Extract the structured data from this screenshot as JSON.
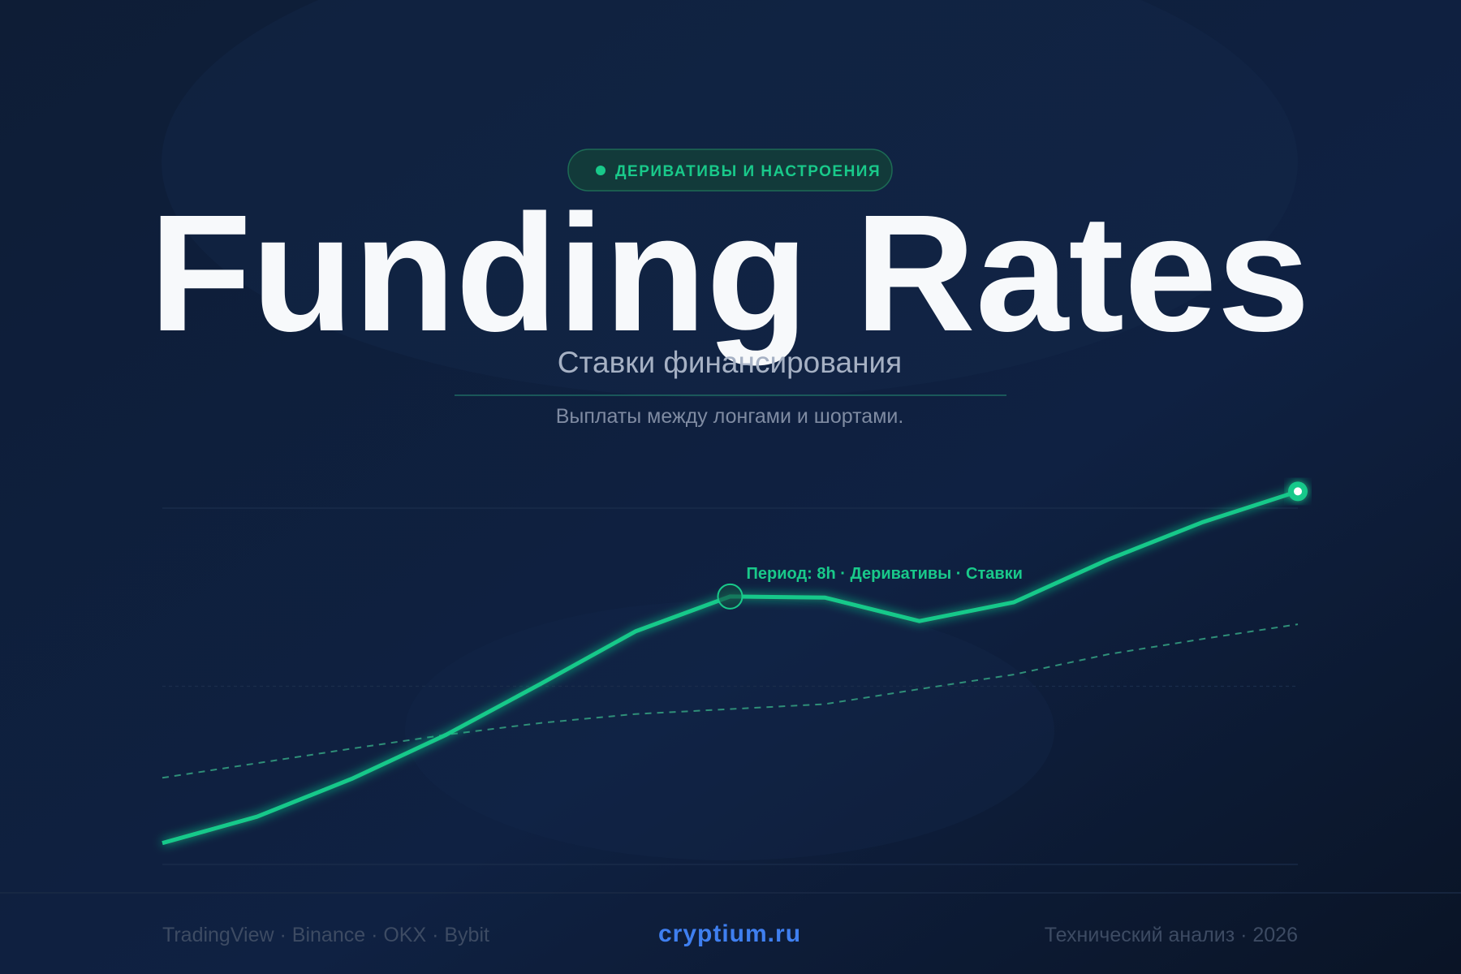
{
  "badge": "ДЕРИВАТИВЫ И НАСТРОЕНИЯ",
  "title": "Funding Rates",
  "subtitle": "Ставки финансирования",
  "description": "Выплаты между лонгами и шортами.",
  "chart_data": {
    "type": "line",
    "annotation": "Период: 8h · Деривативы · Ставки",
    "ylim": [
      0,
      100
    ],
    "gridlines": [
      0,
      50,
      100
    ],
    "series": [
      {
        "color": "#19c98a",
        "values": [
          6,
          13.4,
          24,
          36.4,
          50.7,
          65.4,
          75.2,
          74.9,
          68.3,
          73.6,
          85.6,
          96.1,
          104.7
        ]
      },
      {
        "color": "#2f8f78",
        "values": [
          24.3,
          28.4,
          32.5,
          36.4,
          39.7,
          42.2,
          43.6,
          45,
          49.2,
          53.3,
          59,
          63.3,
          67.4
        ]
      }
    ]
  },
  "footer": {
    "sources": "TradingView · Binance · OKX · Bybit",
    "site": "cryptium.ru",
    "note": "Технический анализ · 2026"
  }
}
